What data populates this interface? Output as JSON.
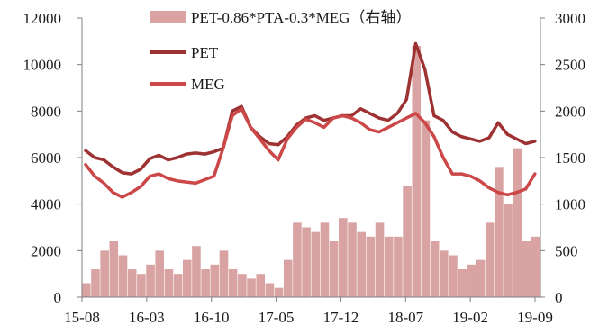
{
  "chart_data": {
    "type": "line+bar (dual axis)",
    "title": "",
    "xlabel": "",
    "x_tick_labels": [
      "15-08",
      "16-03",
      "16-10",
      "17-05",
      "17-12",
      "18-07",
      "19-02",
      "19-09"
    ],
    "left_axis": {
      "ylim": [
        0,
        12000
      ],
      "ticks": [
        0,
        2000,
        4000,
        6000,
        8000,
        10000,
        12000
      ],
      "tick_labels": [
        "0",
        "2000",
        "4000",
        "6000",
        "8000",
        "10000",
        "12000"
      ]
    },
    "right_axis": {
      "ylim": [
        0,
        3000
      ],
      "ticks": [
        0,
        500,
        1000,
        1500,
        2000,
        2500,
        3000
      ],
      "tick_labels": [
        "0",
        "500",
        "1000",
        "1500",
        "2000",
        "2500",
        "3000"
      ]
    },
    "grid": false,
    "legend_position": "top",
    "legend": [
      {
        "label": "PET-0.86*PTA-0.3*MEG（右轴）",
        "kind": "bar",
        "color": "#d9a3a3"
      },
      {
        "label": "PET",
        "kind": "line",
        "color": "#9e3131"
      },
      {
        "label": "MEG",
        "kind": "line",
        "color": "#cc4747"
      }
    ],
    "series": [
      {
        "name": "PET",
        "axis": "left",
        "color": "#9e3131",
        "points": [
          [
            "2015-08",
            6300
          ],
          [
            "2015-09",
            6000
          ],
          [
            "2015-10",
            5900
          ],
          [
            "2015-11",
            5600
          ],
          [
            "2015-12",
            5350
          ],
          [
            "2016-01",
            5300
          ],
          [
            "2016-02",
            5500
          ],
          [
            "2016-03",
            5950
          ],
          [
            "2016-04",
            6100
          ],
          [
            "2016-05",
            5900
          ],
          [
            "2016-06",
            6000
          ],
          [
            "2016-07",
            6150
          ],
          [
            "2016-08",
            6200
          ],
          [
            "2016-09",
            6150
          ],
          [
            "2016-10",
            6250
          ],
          [
            "2016-11",
            6400
          ],
          [
            "2016-12",
            8000
          ],
          [
            "2017-01",
            8200
          ],
          [
            "2017-02",
            7300
          ],
          [
            "2017-03",
            6900
          ],
          [
            "2017-04",
            6600
          ],
          [
            "2017-05",
            6550
          ],
          [
            "2017-06",
            6900
          ],
          [
            "2017-07",
            7400
          ],
          [
            "2017-08",
            7700
          ],
          [
            "2017-09",
            7800
          ],
          [
            "2017-10",
            7600
          ],
          [
            "2017-11",
            7700
          ],
          [
            "2017-12",
            7800
          ],
          [
            "2018-01",
            7800
          ],
          [
            "2018-02",
            8100
          ],
          [
            "2018-03",
            7900
          ],
          [
            "2018-04",
            7700
          ],
          [
            "2018-05",
            7600
          ],
          [
            "2018-06",
            7900
          ],
          [
            "2018-07",
            8500
          ],
          [
            "2018-08",
            10900
          ],
          [
            "2018-09",
            9800
          ],
          [
            "2018-10",
            7800
          ],
          [
            "2018-11",
            7600
          ],
          [
            "2018-12",
            7100
          ],
          [
            "2019-01",
            6900
          ],
          [
            "2019-02",
            6800
          ],
          [
            "2019-03",
            6700
          ],
          [
            "2019-04",
            6850
          ],
          [
            "2019-05",
            7500
          ],
          [
            "2019-06",
            7000
          ],
          [
            "2019-07",
            6800
          ],
          [
            "2019-08",
            6600
          ],
          [
            "2019-09",
            6700
          ]
        ]
      },
      {
        "name": "MEG",
        "axis": "left",
        "color": "#cc4747",
        "points": [
          [
            "2015-08",
            5700
          ],
          [
            "2015-09",
            5200
          ],
          [
            "2015-10",
            4900
          ],
          [
            "2015-11",
            4500
          ],
          [
            "2015-12",
            4300
          ],
          [
            "2016-01",
            4500
          ],
          [
            "2016-02",
            4750
          ],
          [
            "2016-03",
            5200
          ],
          [
            "2016-04",
            5300
          ],
          [
            "2016-05",
            5100
          ],
          [
            "2016-06",
            5000
          ],
          [
            "2016-07",
            4950
          ],
          [
            "2016-08",
            4900
          ],
          [
            "2016-09",
            5050
          ],
          [
            "2016-10",
            5200
          ],
          [
            "2016-11",
            6400
          ],
          [
            "2016-12",
            7800
          ],
          [
            "2017-01",
            8100
          ],
          [
            "2017-02",
            7300
          ],
          [
            "2017-03",
            6800
          ],
          [
            "2017-04",
            6300
          ],
          [
            "2017-05",
            5900
          ],
          [
            "2017-06",
            6800
          ],
          [
            "2017-07",
            7300
          ],
          [
            "2017-08",
            7650
          ],
          [
            "2017-09",
            7500
          ],
          [
            "2017-10",
            7300
          ],
          [
            "2017-11",
            7700
          ],
          [
            "2017-12",
            7800
          ],
          [
            "2018-01",
            7700
          ],
          [
            "2018-02",
            7500
          ],
          [
            "2018-03",
            7200
          ],
          [
            "2018-04",
            7100
          ],
          [
            "2018-05",
            7300
          ],
          [
            "2018-06",
            7500
          ],
          [
            "2018-07",
            7700
          ],
          [
            "2018-08",
            7900
          ],
          [
            "2018-09",
            7500
          ],
          [
            "2018-10",
            6900
          ],
          [
            "2018-11",
            6000
          ],
          [
            "2018-12",
            5300
          ],
          [
            "2019-01",
            5300
          ],
          [
            "2019-02",
            5200
          ],
          [
            "2019-03",
            5000
          ],
          [
            "2019-04",
            4700
          ],
          [
            "2019-05",
            4500
          ],
          [
            "2019-06",
            4400
          ],
          [
            "2019-07",
            4500
          ],
          [
            "2019-08",
            4650
          ],
          [
            "2019-09",
            5300
          ]
        ]
      },
      {
        "name": "PET-0.86*PTA-0.3*MEG（右轴）",
        "axis": "right",
        "kind": "bar",
        "color": "#d9a3a3",
        "points": [
          [
            "2015-08",
            150
          ],
          [
            "2015-09",
            300
          ],
          [
            "2015-10",
            500
          ],
          [
            "2015-11",
            600
          ],
          [
            "2015-12",
            450
          ],
          [
            "2016-01",
            300
          ],
          [
            "2016-02",
            250
          ],
          [
            "2016-03",
            350
          ],
          [
            "2016-04",
            500
          ],
          [
            "2016-05",
            300
          ],
          [
            "2016-06",
            250
          ],
          [
            "2016-07",
            400
          ],
          [
            "2016-08",
            550
          ],
          [
            "2016-09",
            300
          ],
          [
            "2016-10",
            350
          ],
          [
            "2016-11",
            500
          ],
          [
            "2016-12",
            300
          ],
          [
            "2017-01",
            250
          ],
          [
            "2017-02",
            200
          ],
          [
            "2017-03",
            250
          ],
          [
            "2017-04",
            150
          ],
          [
            "2017-05",
            100
          ],
          [
            "2017-06",
            400
          ],
          [
            "2017-07",
            800
          ],
          [
            "2017-08",
            750
          ],
          [
            "2017-09",
            700
          ],
          [
            "2017-10",
            800
          ],
          [
            "2017-11",
            600
          ],
          [
            "2017-12",
            850
          ],
          [
            "2018-01",
            800
          ],
          [
            "2018-02",
            700
          ],
          [
            "2018-03",
            650
          ],
          [
            "2018-04",
            800
          ],
          [
            "2018-05",
            650
          ],
          [
            "2018-06",
            650
          ],
          [
            "2018-07",
            1200
          ],
          [
            "2018-08",
            2700
          ],
          [
            "2018-09",
            1900
          ],
          [
            "2018-10",
            600
          ],
          [
            "2018-11",
            500
          ],
          [
            "2018-12",
            450
          ],
          [
            "2019-01",
            300
          ],
          [
            "2019-02",
            350
          ],
          [
            "2019-03",
            400
          ],
          [
            "2019-04",
            800
          ],
          [
            "2019-05",
            1400
          ],
          [
            "2019-06",
            1000
          ],
          [
            "2019-07",
            1600
          ],
          [
            "2019-08",
            600
          ],
          [
            "2019-09",
            650
          ]
        ]
      }
    ]
  }
}
